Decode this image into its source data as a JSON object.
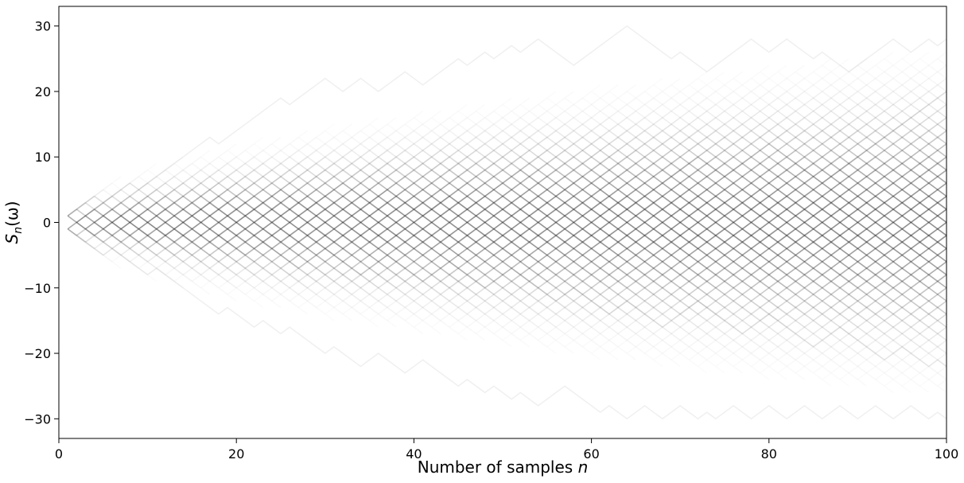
{
  "chart_data": {
    "type": "line",
    "title": "",
    "xlabel": "Number of samples n",
    "ylabel": "S_n(ω)",
    "xlim": [
      0,
      100
    ],
    "ylim": [
      -33,
      33
    ],
    "xticks": [
      0,
      20,
      40,
      60,
      80,
      100
    ],
    "xtick_labels": [
      "0",
      "20",
      "40",
      "60",
      "80",
      "100"
    ],
    "yticks": [
      -30,
      -20,
      -10,
      0,
      10,
      20,
      30
    ],
    "ytick_labels": [
      "−30",
      "−20",
      "−10",
      "0",
      "10",
      "20",
      "30"
    ],
    "grid": false,
    "legend": "none",
    "line_color": "#000000",
    "line_opacity": 0.04,
    "n_start": 1,
    "n_end": 100,
    "series": [
      {
        "values": [
          1,
          2,
          3,
          4,
          3,
          4,
          5,
          6,
          5,
          6,
          7,
          8,
          9,
          10,
          11,
          12,
          13,
          12,
          13,
          14,
          15,
          16,
          17,
          18,
          19,
          18,
          19,
          20,
          21,
          22,
          21,
          20,
          21,
          22,
          21,
          20,
          21,
          22,
          23,
          22,
          21,
          22,
          23,
          24,
          25,
          24,
          25,
          26,
          25,
          26,
          27,
          26,
          27,
          28,
          27,
          26,
          25,
          24,
          25,
          26,
          27,
          28,
          29,
          30,
          29,
          28,
          27,
          26,
          25,
          26,
          25,
          24,
          23,
          24,
          25,
          26,
          27,
          28,
          27,
          26,
          27,
          28,
          27,
          26,
          25,
          26,
          25,
          24,
          23,
          24,
          25,
          26,
          27,
          28,
          27,
          26,
          27,
          28,
          27,
          28
        ]
      },
      {
        "values": [
          -1,
          -2,
          -3,
          -4,
          -5,
          -4,
          -5,
          -6,
          -7,
          -8,
          -7,
          -8,
          -9,
          -10,
          -11,
          -12,
          -13,
          -14,
          -13,
          -14,
          -15,
          -16,
          -15,
          -16,
          -17,
          -16,
          -17,
          -18,
          -19,
          -20,
          -19,
          -20,
          -21,
          -22,
          -21,
          -20,
          -21,
          -22,
          -23,
          -22,
          -21,
          -22,
          -23,
          -24,
          -25,
          -24,
          -25,
          -26,
          -25,
          -26,
          -27,
          -26,
          -27,
          -28,
          -27,
          -26,
          -25,
          -26,
          -27,
          -28,
          -29,
          -28,
          -29,
          -30,
          -29,
          -28,
          -29,
          -30,
          -29,
          -28,
          -29,
          -30,
          -29,
          -30,
          -29,
          -28,
          -29,
          -30,
          -29,
          -28,
          -29,
          -30,
          -29,
          -28,
          -29,
          -30,
          -29,
          -28,
          -29,
          -30,
          -29,
          -28,
          -29,
          -30,
          -29,
          -28,
          -29,
          -30,
          -29,
          -30
        ]
      },
      {
        "values": [
          1,
          0,
          1,
          2,
          1,
          0,
          -1,
          0,
          1,
          0,
          -1,
          -2,
          -1,
          0,
          1,
          2,
          3,
          2,
          1,
          0,
          1,
          2,
          3,
          4,
          5,
          4,
          3,
          2,
          3,
          4,
          5,
          6,
          5,
          4,
          3,
          4,
          5,
          4,
          3,
          2,
          1,
          2,
          3,
          4,
          3,
          2,
          3,
          4,
          5,
          6,
          7,
          8,
          7,
          6,
          5,
          4,
          5,
          6,
          7,
          6,
          5,
          4,
          3,
          2,
          3,
          4,
          5,
          6,
          7,
          8,
          9,
          10,
          9,
          8,
          7,
          8,
          9,
          10,
          11,
          12,
          11,
          10,
          9,
          8,
          7,
          6,
          7,
          8,
          9,
          10,
          11,
          12,
          13,
          14,
          15,
          16,
          17,
          18,
          19,
          20
        ]
      },
      {
        "values": [
          -1,
          0,
          -1,
          -2,
          -1,
          0,
          1,
          0,
          -1,
          -2,
          -3,
          -2,
          -1,
          -2,
          -3,
          -4,
          -3,
          -2,
          -3,
          -4,
          -5,
          -4,
          -3,
          -4,
          -5,
          -6,
          -7,
          -6,
          -5,
          -4,
          -5,
          -6,
          -7,
          -8,
          -7,
          -6,
          -5,
          -6,
          -7,
          -8,
          -9,
          -8,
          -7,
          -6,
          -7,
          -8,
          -9,
          -10,
          -9,
          -8,
          -7,
          -8,
          -9,
          -10,
          -11,
          -12,
          -11,
          -10,
          -11,
          -12,
          -13,
          -14,
          -13,
          -12,
          -13,
          -14,
          -15,
          -16,
          -15,
          -14,
          -13,
          -12,
          -13,
          -14,
          -15,
          -16,
          -17,
          -16,
          -15,
          -14,
          -15,
          -16,
          -17,
          -18,
          -19,
          -18,
          -17,
          -16,
          -17,
          -18,
          -19,
          -20,
          -21,
          -20,
          -19,
          -20,
          -21,
          -22,
          -21,
          -22
        ]
      }
    ]
  }
}
